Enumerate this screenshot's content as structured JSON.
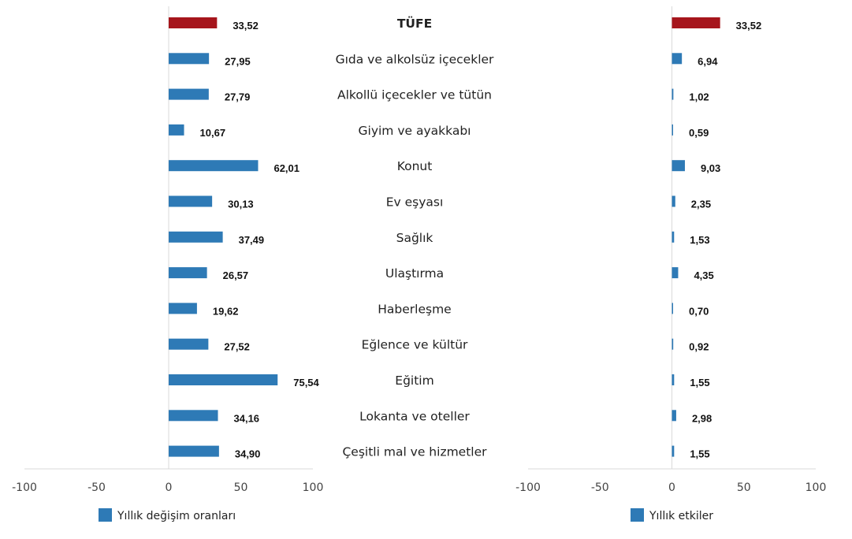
{
  "chart_data": [
    {
      "type": "bar",
      "orientation": "horizontal",
      "categories": [
        "TÜFE",
        "Gıda ve alkolsüz içecekler",
        "Alkollü içecekler ve tütün",
        "Giyim ve ayakkabı",
        "Konut",
        "Ev eşyası",
        "Sağlık",
        "Ulaştırma",
        "Haberleşme",
        "Eğlence ve kültür",
        "Eğitim",
        "Lokanta ve oteller",
        "Çeşitli mal ve hizmetler"
      ],
      "series": [
        {
          "name": "Yıllık değişim oranları",
          "values": [
            33.52,
            27.95,
            27.79,
            10.67,
            62.01,
            30.13,
            37.49,
            26.57,
            19.62,
            27.52,
            75.54,
            34.16,
            34.9
          ]
        }
      ],
      "data_labels": [
        "33,52",
        "27,95",
        "27,79",
        "10,67",
        "62,01",
        "30,13",
        "37,49",
        "26,57",
        "19,62",
        "27,52",
        "75,54",
        "34,16",
        "34,90"
      ],
      "xlim": [
        -100,
        100
      ],
      "xticks": [
        "-100",
        "-50",
        "0",
        "50",
        "100"
      ],
      "grid": false,
      "legend": "bottom",
      "colors": {
        "highlight": "#a6151c",
        "bar": "#2e7ab6"
      }
    },
    {
      "type": "bar",
      "orientation": "horizontal",
      "categories": [
        "TÜFE",
        "Gıda ve alkolsüz içecekler",
        "Alkollü içecekler ve tütün",
        "Giyim ve ayakkabı",
        "Konut",
        "Ev eşyası",
        "Sağlık",
        "Ulaştırma",
        "Haberleşme",
        "Eğlence ve kültür",
        "Eğitim",
        "Lokanta ve oteller",
        "Çeşitli mal ve hizmetler"
      ],
      "series": [
        {
          "name": "Yıllık etkiler",
          "values": [
            33.52,
            6.94,
            1.02,
            0.59,
            9.03,
            2.35,
            1.53,
            4.35,
            0.7,
            0.92,
            1.55,
            2.98,
            1.55
          ]
        }
      ],
      "data_labels": [
        "33,52",
        "6,94",
        "1,02",
        "0,59",
        "9,03",
        "2,35",
        "1,53",
        "4,35",
        "0,70",
        "0,92",
        "1,55",
        "2,98",
        "1,55"
      ],
      "xlim": [
        -100,
        100
      ],
      "xticks": [
        "-100",
        "-50",
        "0",
        "50",
        "100"
      ],
      "grid": false,
      "legend": "bottom",
      "colors": {
        "highlight": "#a6151c",
        "bar": "#2e7ab6"
      }
    }
  ]
}
